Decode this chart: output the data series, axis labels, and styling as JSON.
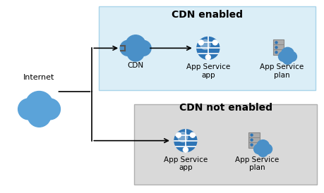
{
  "bg_color": "#ffffff",
  "title1": "CDN enabled",
  "title2": "CDN not enabled",
  "box1_color": "#dbeef7",
  "box1_edge": "#a8d4ea",
  "box2_color": "#d9d9d9",
  "box2_edge": "#b0b0b0",
  "internet_label": "Internet",
  "cdn_label": "CDN",
  "app_service_app_label": "App Service\napp",
  "app_service_plan_label": "App Service\nplan",
  "label_fontsize": 7.5,
  "title_fontsize": 10,
  "cloud_color": "#4a90c8",
  "cdn_cloud_color": "#4a90c8",
  "globe_color": "#2e75b6",
  "server_color": "#aaaaaa",
  "server_edge_color": "#888888",
  "small_cloud_color": "#4a90c8"
}
